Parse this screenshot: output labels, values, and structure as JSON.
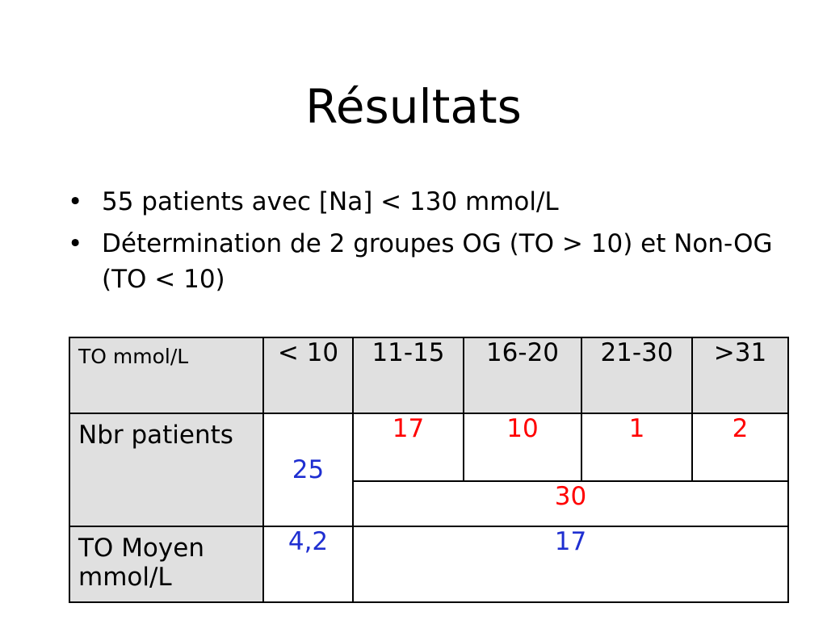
{
  "slide": {
    "title": "Résultats",
    "bullets": [
      {
        "marker": "•",
        "text": "55 patients avec [Na] < 130 mmol/L"
      },
      {
        "marker": "•",
        "text": "Détermination de 2 groupes OG (TO > 10) et Non-OG (TO < 10)"
      }
    ]
  },
  "table": {
    "header": {
      "label": "TO mmol/L",
      "cols": [
        "< 10",
        "11-15",
        "16-20",
        "21-30",
        ">31"
      ]
    },
    "nbr_patients": {
      "label": "Nbr patients",
      "non_og_total": "25",
      "og_values": [
        "17",
        "10",
        "1",
        "2"
      ],
      "og_total": "30"
    },
    "to_moyen": {
      "label": "TO Moyen mmol/L",
      "non_og": "4,2",
      "og": "17"
    }
  },
  "colors": {
    "red_values": "#ff0000",
    "blue_values": "#1f2fd1",
    "header_background": "#e0e0e0"
  }
}
